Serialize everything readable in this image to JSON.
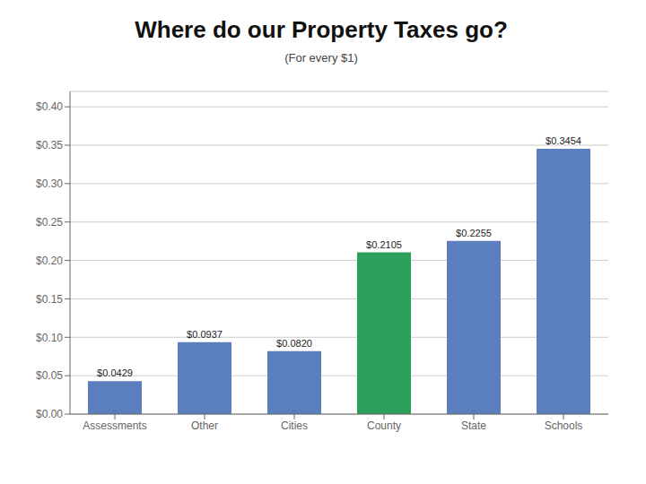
{
  "chart_data": {
    "type": "bar",
    "title": "Where do our Property Taxes go?",
    "subtitle": "(For every $1)",
    "categories": [
      "Assessments",
      "Other",
      "Cities",
      "County",
      "State",
      "Schools"
    ],
    "values": [
      0.0429,
      0.0937,
      0.082,
      0.2105,
      0.2255,
      0.3454
    ],
    "value_labels": [
      "$0.0429",
      "$0.0937",
      "$0.0820",
      "$0.2105",
      "$0.2255",
      "$0.3454"
    ],
    "colors": [
      "#5b7fbc",
      "#5b7fbc",
      "#5b7fbc",
      "#2ca05a",
      "#5b7fbc",
      "#5b7fbc"
    ],
    "ylim": [
      0,
      0.42
    ],
    "yticks": [
      {
        "value": 0.0,
        "label": "$0.00"
      },
      {
        "value": 0.05,
        "label": "$0.05"
      },
      {
        "value": 0.1,
        "label": "$0.10"
      },
      {
        "value": 0.15,
        "label": "$0.15"
      },
      {
        "value": 0.2,
        "label": "$0.20"
      },
      {
        "value": 0.25,
        "label": "$0.25"
      },
      {
        "value": 0.3,
        "label": "$0.30"
      },
      {
        "value": 0.35,
        "label": "$0.35"
      },
      {
        "value": 0.4,
        "label": "$0.40"
      }
    ],
    "grid": true,
    "data_labels": true
  }
}
